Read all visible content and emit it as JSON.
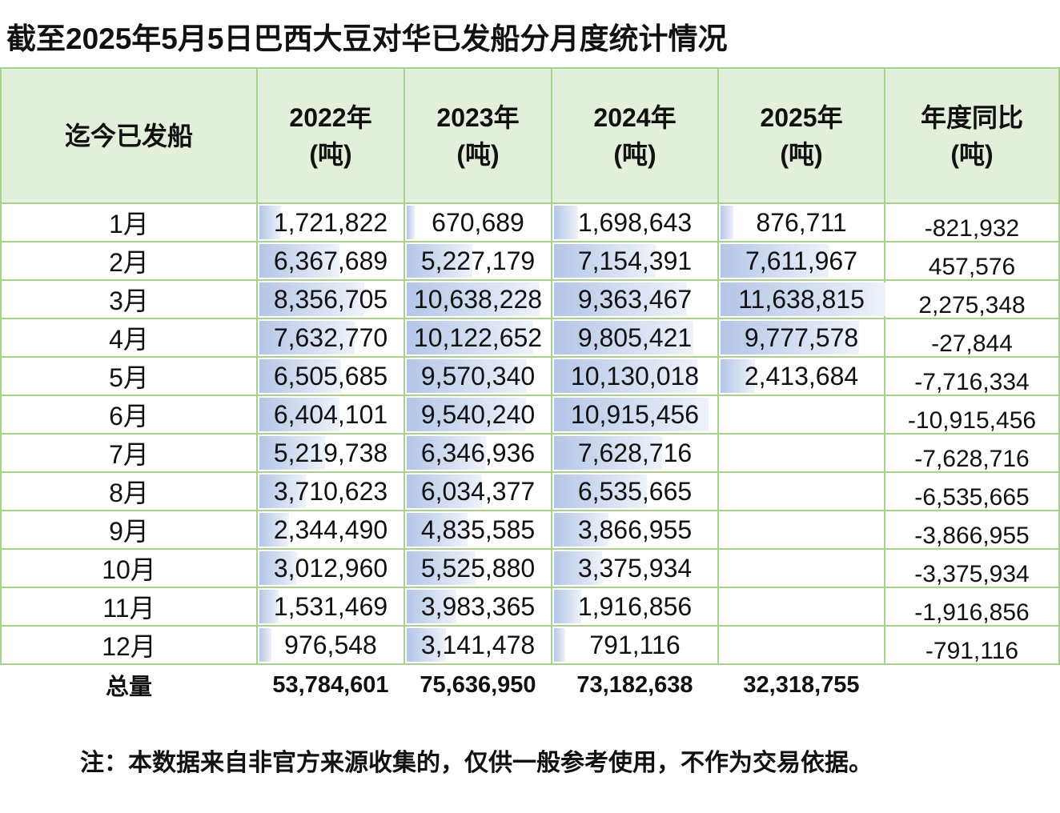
{
  "title": "截至2025年5月5日巴西大豆对华已发船分月度统计情况",
  "headers": [
    "迄今已发船",
    "2022年\n(吨)",
    "2023年\n(吨)",
    "2024年\n(吨)",
    "2025年\n(吨)",
    "年度同比\n(吨)"
  ],
  "bar_color": "#b4c6e7",
  "border_color": "#a9d18e",
  "header_bg": "#e2efda",
  "rows": [
    {
      "month": "1月",
      "v": [
        "1,721,822",
        "670,689",
        "1,698,643",
        "876,711"
      ],
      "diff": "-821,932"
    },
    {
      "month": "2月",
      "v": [
        "6,367,689",
        "5,227,179",
        "7,154,391",
        "7,611,967"
      ],
      "diff": "457,576"
    },
    {
      "month": "3月",
      "v": [
        "8,356,705",
        "10,638,228",
        "9,363,467",
        "11,638,815"
      ],
      "diff": "2,275,348"
    },
    {
      "month": "4月",
      "v": [
        "7,632,770",
        "10,122,652",
        "9,805,421",
        "9,777,578"
      ],
      "diff": "-27,844"
    },
    {
      "month": "5月",
      "v": [
        "6,505,685",
        "9,570,340",
        "10,130,018",
        "2,413,684"
      ],
      "diff": "-7,716,334"
    },
    {
      "month": "6月",
      "v": [
        "6,404,101",
        "9,540,240",
        "10,915,456",
        ""
      ],
      "diff": "-10,915,456"
    },
    {
      "month": "7月",
      "v": [
        "5,219,738",
        "6,346,936",
        "7,628,716",
        ""
      ],
      "diff": "-7,628,716"
    },
    {
      "month": "8月",
      "v": [
        "3,710,623",
        "6,034,377",
        "6,535,665",
        ""
      ],
      "diff": "-6,535,665"
    },
    {
      "month": "9月",
      "v": [
        "2,344,490",
        "4,835,585",
        "3,866,955",
        ""
      ],
      "diff": "-3,866,955"
    },
    {
      "month": "10月",
      "v": [
        "3,012,960",
        "5,525,880",
        "3,375,934",
        ""
      ],
      "diff": "-3,375,934"
    },
    {
      "month": "11月",
      "v": [
        "1,531,469",
        "3,983,365",
        "1,916,856",
        ""
      ],
      "diff": "-1,916,856"
    },
    {
      "month": "12月",
      "v": [
        "976,548",
        "3,141,478",
        "791,116",
        ""
      ],
      "diff": "-791,116"
    }
  ],
  "total": {
    "label": "总量",
    "v": [
      "53,784,601",
      "75,636,950",
      "73,182,638",
      "32,318,755"
    ]
  },
  "note": "注：本数据来自非官方来源收集的，仅供一般参考使用，不作为交易依据。"
}
